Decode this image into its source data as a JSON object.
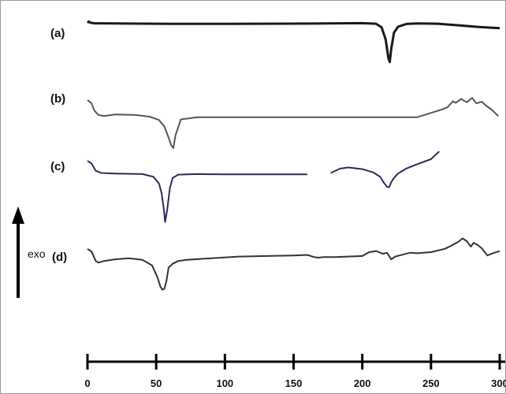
{
  "chart_data": {
    "type": "line",
    "title": "",
    "xlabel": "",
    "ylabel": "exo",
    "xlim": [
      0,
      300
    ],
    "x_ticks": [
      0,
      50,
      100,
      150,
      200,
      250,
      300
    ],
    "x_tick_labels": [
      "0",
      "50",
      "100",
      "150",
      "200",
      "250",
      "300"
    ],
    "series": [
      {
        "name": "(a)",
        "x": [
          0,
          1,
          2,
          5,
          20,
          60,
          100,
          150,
          200,
          210,
          214,
          217,
          219,
          220,
          221,
          223,
          226,
          232,
          240,
          255,
          270,
          285,
          300
        ],
        "y": [
          0.0,
          0.12,
          0.02,
          -0.04,
          -0.06,
          -0.09,
          -0.09,
          -0.07,
          -0.03,
          -0.08,
          -0.4,
          -1.5,
          -3.2,
          -3.55,
          -2.4,
          -0.9,
          -0.35,
          -0.1,
          -0.05,
          -0.08,
          -0.22,
          -0.38,
          -0.48
        ]
      },
      {
        "name": "(b)",
        "x": [
          0,
          3,
          5,
          8,
          12,
          20,
          35,
          45,
          52,
          56,
          59,
          61,
          62.5,
          64,
          68,
          80,
          120,
          160,
          200,
          240,
          258,
          262,
          266,
          268,
          272,
          276,
          280,
          283,
          287,
          290,
          294,
          299
        ],
        "y": [
          1.0,
          0.7,
          0.05,
          -0.35,
          -0.45,
          -0.3,
          -0.35,
          -0.5,
          -0.8,
          -1.4,
          -2.4,
          -3.1,
          -3.35,
          -2.2,
          -0.75,
          -0.55,
          -0.55,
          -0.55,
          -0.55,
          -0.55,
          0.15,
          0.35,
          0.9,
          0.75,
          1.1,
          0.8,
          1.2,
          0.7,
          0.85,
          0.5,
          0.15,
          -0.45
        ]
      },
      {
        "name": "(c)",
        "x": [
          0,
          3,
          6,
          10,
          20,
          40,
          48,
          52,
          54,
          55.5,
          56.5,
          58,
          60,
          62,
          66,
          80,
          100,
          130,
          160,
          166,
          177,
          184,
          190,
          200,
          208,
          213,
          216,
          218,
          219.5,
          221,
          223,
          226,
          232,
          240,
          250,
          256
        ],
        "y": [
          0.85,
          0.6,
          -0.05,
          -0.25,
          -0.3,
          -0.35,
          -0.6,
          -1.2,
          -2.1,
          -3.5,
          -4.7,
          -3.6,
          -1.6,
          -0.7,
          -0.4,
          -0.35,
          -0.38,
          -0.38,
          -0.38,
          null,
          -0.25,
          0.15,
          0.25,
          0.1,
          -0.2,
          -0.6,
          -1.2,
          -1.5,
          -1.55,
          -1.1,
          -0.7,
          -0.3,
          0.15,
          0.55,
          1.0,
          1.7
        ]
      },
      {
        "name": "(d)",
        "x": [
          0,
          3,
          6,
          8,
          12,
          20,
          30,
          40,
          47,
          51,
          53,
          54.5,
          56,
          57.5,
          59,
          62,
          66,
          72,
          90,
          110,
          130,
          150,
          160,
          165,
          168,
          172,
          180,
          200,
          205,
          210,
          215,
          218,
          221,
          224,
          230,
          235,
          240,
          250,
          260,
          265,
          270,
          273,
          276,
          279,
          281,
          284,
          287,
          291,
          295,
          300
        ],
        "y": [
          0.8,
          0.55,
          -0.3,
          -0.45,
          -0.3,
          -0.15,
          -0.05,
          -0.2,
          -0.7,
          -1.8,
          -2.6,
          -2.9,
          -2.8,
          -2.1,
          -0.9,
          -0.55,
          -0.3,
          -0.2,
          -0.05,
          0.1,
          0.15,
          0.2,
          0.25,
          0.05,
          0.0,
          0.05,
          0.05,
          0.15,
          0.5,
          0.6,
          0.35,
          0.45,
          -0.15,
          0.1,
          0.3,
          0.45,
          0.4,
          0.5,
          0.8,
          1.1,
          1.45,
          1.75,
          1.5,
          1.0,
          1.35,
          1.15,
          0.85,
          0.2,
          0.4,
          0.6
        ]
      }
    ],
    "grid": false,
    "legend": "curve labels at left of each trace"
  }
}
